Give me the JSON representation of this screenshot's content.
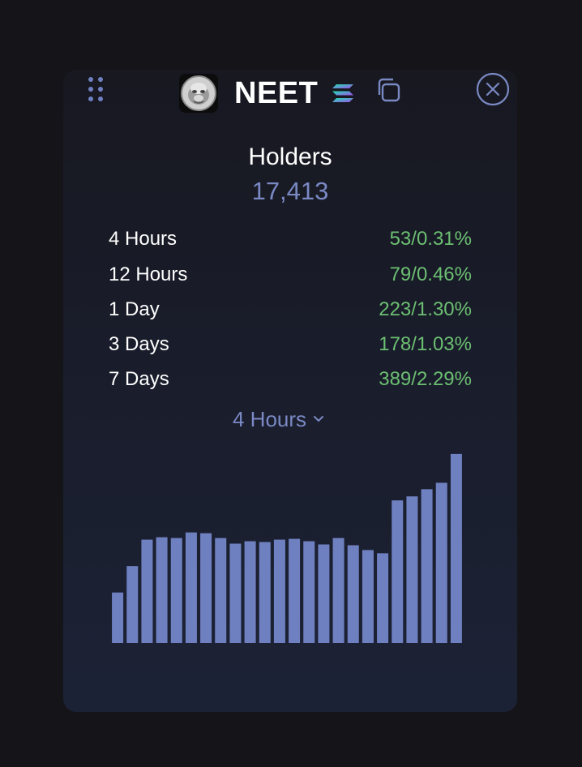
{
  "token": {
    "name": "NEET",
    "icons": {
      "drag": "drag-handle-icon",
      "avatar": "token-avatar",
      "chain": "solana-icon",
      "copy": "copy-icon",
      "close": "close-icon"
    }
  },
  "holders": {
    "title": "Holders",
    "count": "17,413"
  },
  "stats": [
    {
      "label": "4 Hours",
      "count": "53",
      "sep": "/",
      "pct": "0.31%"
    },
    {
      "label": "12 Hours",
      "count": "79",
      "sep": "/",
      "pct": "0.46%"
    },
    {
      "label": "1 Day",
      "count": "223",
      "sep": "/",
      "pct": "1.30%"
    },
    {
      "label": "3 Days",
      "count": "178",
      "sep": "/",
      "pct": "1.03%"
    },
    {
      "label": "7 Days",
      "count": "389",
      "sep": "/",
      "pct": "2.29%"
    }
  ],
  "period_select": {
    "value": "4 Hours",
    "icon": "chevron-down-icon"
  },
  "colors": {
    "accent": "#7a89c4",
    "bar": "#6f80c0",
    "positive": "#6cbf72",
    "text": "#ffffff",
    "card": "#1a1e2e"
  },
  "chart_data": {
    "type": "bar",
    "values": [
      63,
      96,
      129,
      132,
      131,
      138,
      137,
      131,
      124,
      127,
      126,
      129,
      130,
      127,
      123,
      131,
      122,
      116,
      112,
      178,
      183,
      192,
      200,
      236
    ],
    "ylim": [
      0,
      246
    ],
    "grid": false,
    "legend": "none"
  }
}
